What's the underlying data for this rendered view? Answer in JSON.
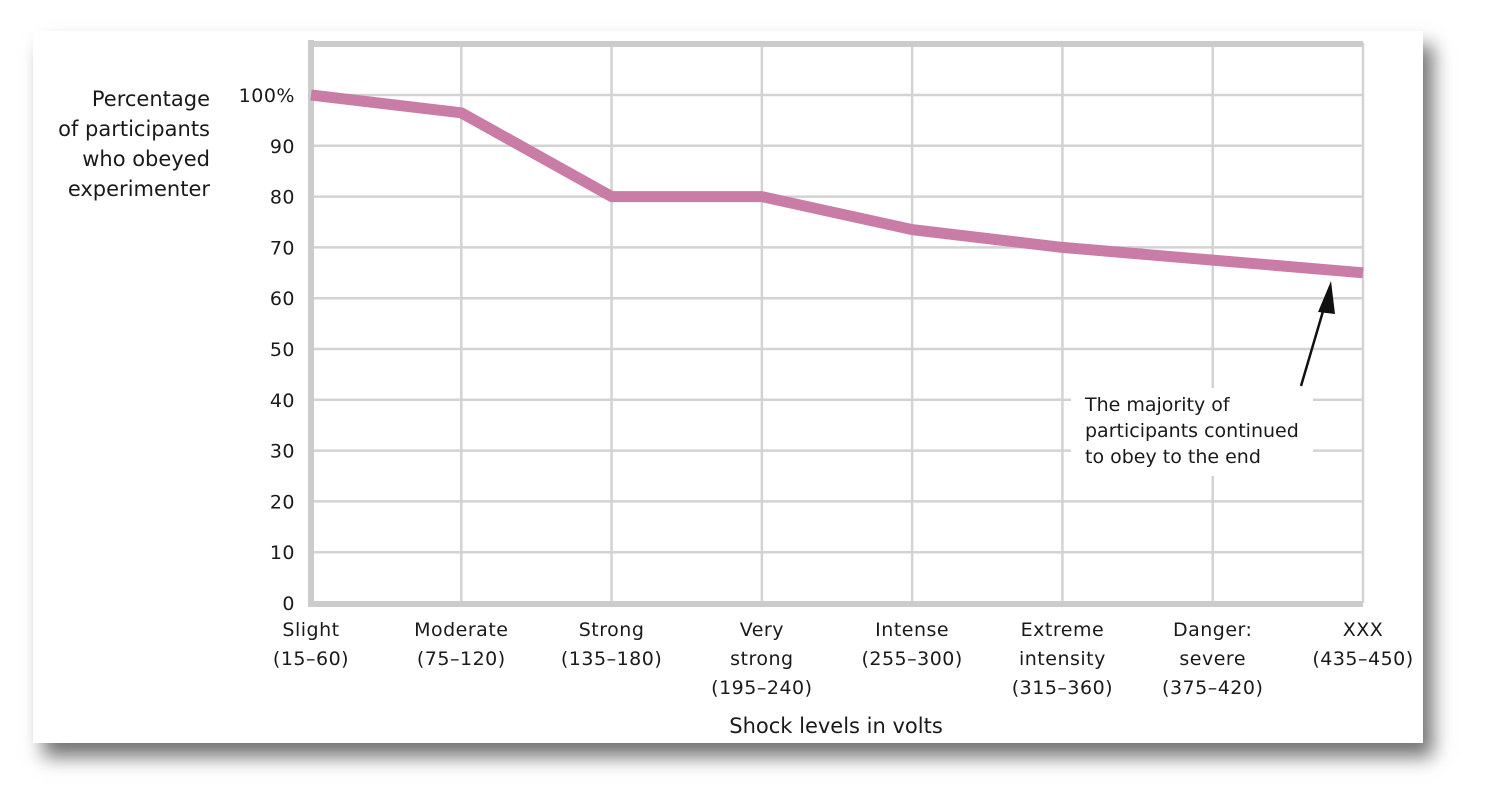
{
  "chart_data": {
    "type": "line",
    "ylabel_lines": [
      "Percentage",
      "of participants",
      "who obeyed",
      "experimenter"
    ],
    "xlabel": "Shock levels in volts",
    "categories": [
      [
        "Slight",
        "(15–60)"
      ],
      [
        "Moderate",
        "(75–120)"
      ],
      [
        "Strong",
        "(135–180)"
      ],
      [
        "Very",
        "strong",
        "(195–240)"
      ],
      [
        "Intense",
        "(255–300)"
      ],
      [
        "Extreme",
        "intensity",
        "(315–360)"
      ],
      [
        "Danger:",
        "severe",
        "(375–420)"
      ],
      [
        "XXX",
        "(435–450)"
      ]
    ],
    "values": [
      100,
      96.5,
      80,
      80,
      73.5,
      70,
      67.5,
      65
    ],
    "y_ticks": [
      "0",
      "10",
      "20",
      "30",
      "40",
      "50",
      "60",
      "70",
      "80",
      "90",
      "100%"
    ],
    "ylim": [
      0,
      110
    ],
    "grid": true,
    "line_color": "#c97ca5",
    "annotation": {
      "lines": [
        "The majority of",
        "participants continued",
        "to obey to the end"
      ]
    }
  }
}
